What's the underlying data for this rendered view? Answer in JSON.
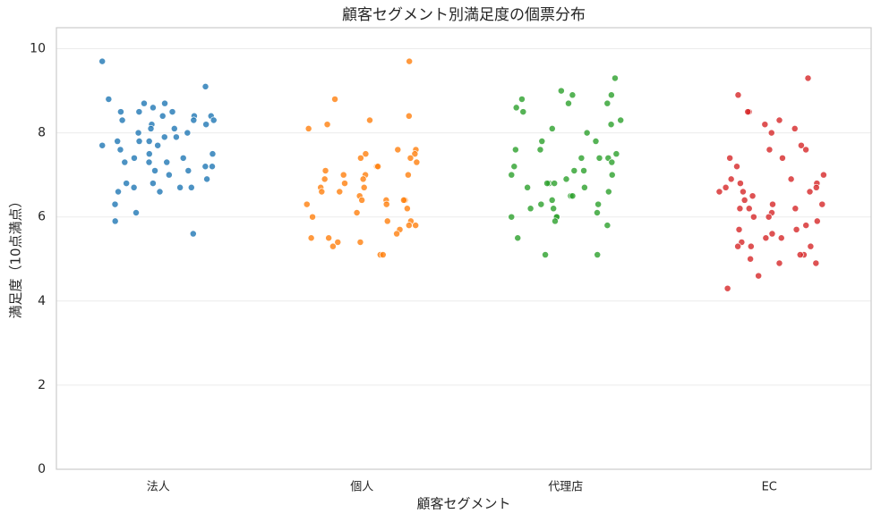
{
  "chart_data": {
    "type": "strip",
    "title": "顧客セグメント別満足度の個票分布",
    "x_label": "顧客セグメント",
    "y_label": "満足度（10点満点）",
    "categories": [
      "法人",
      "個人",
      "代理店",
      "EC"
    ],
    "groups": [
      {
        "color": "#1f77b4",
        "values": [
          9.7,
          9.1,
          8.8,
          8.7,
          8.7,
          8.6,
          8.5,
          8.5,
          8.5,
          8.4,
          8.4,
          8.4,
          8.3,
          8.3,
          8.3,
          8.2,
          8.2,
          8.1,
          8.1,
          8.0,
          8.0,
          7.9,
          7.9,
          7.8,
          7.8,
          7.8,
          7.7,
          7.7,
          7.6,
          7.5,
          7.5,
          7.4,
          7.4,
          7.3,
          7.3,
          7.3,
          7.2,
          7.2,
          7.1,
          7.1,
          7.0,
          6.9,
          6.8,
          6.8,
          6.7,
          6.7,
          6.7,
          6.6,
          6.6,
          6.3,
          6.1,
          5.9,
          5.6
        ]
      },
      {
        "color": "#ff7f0e",
        "values": [
          9.7,
          8.8,
          8.4,
          8.3,
          8.2,
          8.1,
          7.6,
          7.6,
          7.5,
          7.5,
          7.4,
          7.4,
          7.3,
          7.2,
          7.2,
          7.1,
          7.0,
          7.0,
          7.0,
          6.9,
          6.9,
          6.8,
          6.7,
          6.7,
          6.6,
          6.6,
          6.5,
          6.4,
          6.4,
          6.4,
          6.4,
          6.3,
          6.3,
          6.2,
          6.1,
          6.0,
          5.9,
          5.9,
          5.8,
          5.8,
          5.7,
          5.6,
          5.5,
          5.5,
          5.4,
          5.4,
          5.3,
          5.1,
          5.1
        ]
      },
      {
        "color": "#2ca02c",
        "values": [
          9.3,
          9.0,
          8.9,
          8.9,
          8.8,
          8.7,
          8.7,
          8.6,
          8.5,
          8.3,
          8.2,
          8.1,
          8.0,
          7.8,
          7.8,
          7.6,
          7.6,
          7.5,
          7.4,
          7.4,
          7.4,
          7.3,
          7.2,
          7.1,
          7.1,
          7.0,
          7.0,
          6.9,
          6.8,
          6.8,
          6.8,
          6.7,
          6.7,
          6.6,
          6.5,
          6.5,
          6.4,
          6.3,
          6.3,
          6.2,
          6.2,
          6.1,
          6.0,
          6.0,
          6.0,
          5.9,
          5.8,
          5.5,
          5.1,
          5.1
        ]
      },
      {
        "color": "#d62728",
        "values": [
          9.3,
          8.9,
          8.5,
          8.5,
          8.3,
          8.2,
          8.1,
          8.0,
          7.7,
          7.6,
          7.6,
          7.4,
          7.4,
          7.2,
          7.0,
          6.9,
          6.9,
          6.8,
          6.8,
          6.7,
          6.7,
          6.6,
          6.6,
          6.6,
          6.5,
          6.4,
          6.3,
          6.3,
          6.2,
          6.2,
          6.2,
          6.1,
          6.0,
          6.0,
          5.9,
          5.8,
          5.7,
          5.7,
          5.6,
          5.5,
          5.5,
          5.4,
          5.3,
          5.3,
          5.3,
          5.1,
          5.1,
          5.0,
          4.9,
          4.9,
          4.6,
          4.3
        ]
      }
    ],
    "ylim": [
      0,
      10.5
    ],
    "yticks": [
      0,
      2,
      4,
      6,
      8,
      10
    ],
    "grid": true
  }
}
